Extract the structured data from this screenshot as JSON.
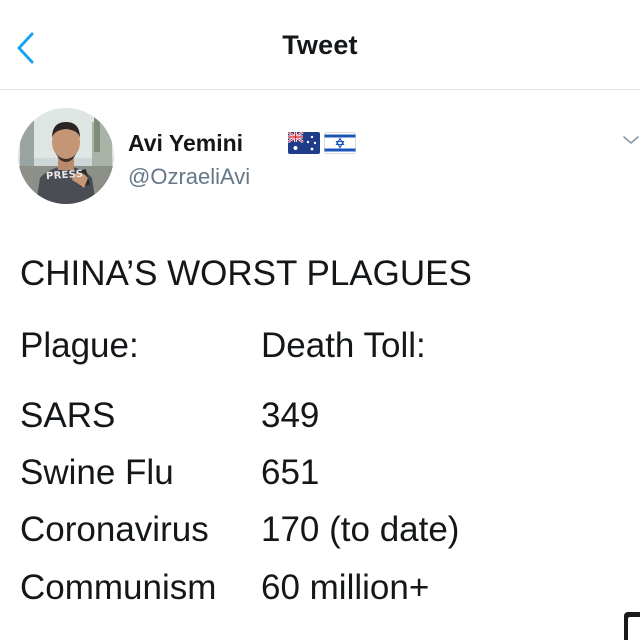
{
  "header": {
    "title": "Tweet",
    "back_icon": "chevron-left-icon",
    "accent_color": "#1da1f2"
  },
  "author": {
    "display_name": "Avi Yemini",
    "handle": "@OzraeliAvi",
    "flags": [
      "australia-flag-icon",
      "israel-flag-icon"
    ],
    "avatar_shirt_text": "PRESS"
  },
  "tweet": {
    "title": "CHINA’S WORST PLAGUES",
    "table_header": {
      "col1": "Plague:",
      "col2": "Death Toll:"
    },
    "rows": [
      {
        "plague": "SARS",
        "toll": "349"
      },
      {
        "plague": "Swine Flu",
        "toll": "651"
      },
      {
        "plague": "Coronavirus",
        "toll": "170 (to date)"
      },
      {
        "plague": "Communism",
        "toll": "60 million+"
      }
    ]
  },
  "menu_icon": "chevron-down-icon"
}
